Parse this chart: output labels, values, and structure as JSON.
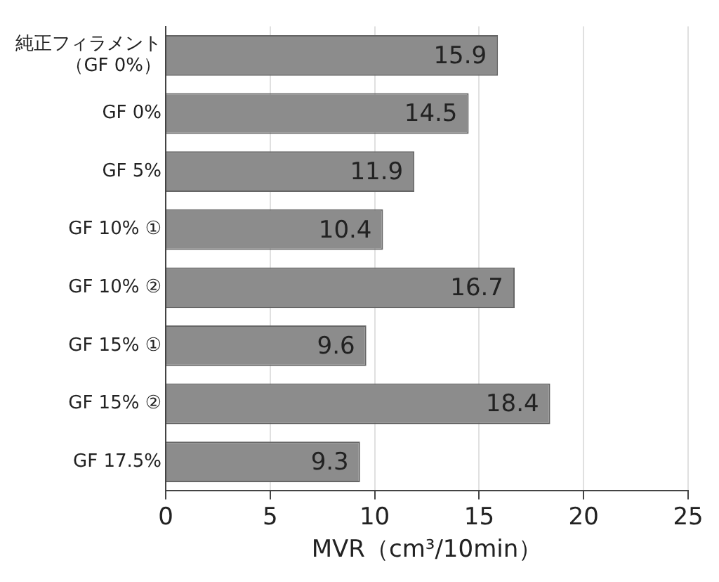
{
  "chart_data": {
    "type": "bar",
    "orientation": "horizontal",
    "categories": [
      "純正フィラメント（GF 0%）",
      "GF 0%",
      "GF 5%",
      "GF 10% ①",
      "GF 10% ②",
      "GF 15% ①",
      "GF 15% ②",
      "GF 17.5%"
    ],
    "values": [
      15.9,
      14.5,
      11.9,
      10.4,
      16.7,
      9.6,
      18.4,
      9.3
    ],
    "color": "#8c8c8c",
    "xlabel": "MVR（cm³/10min）",
    "xlim": [
      0,
      25
    ],
    "xticks": [
      0,
      5,
      10,
      15,
      20,
      25
    ],
    "grid": "x",
    "data_labels": true
  }
}
